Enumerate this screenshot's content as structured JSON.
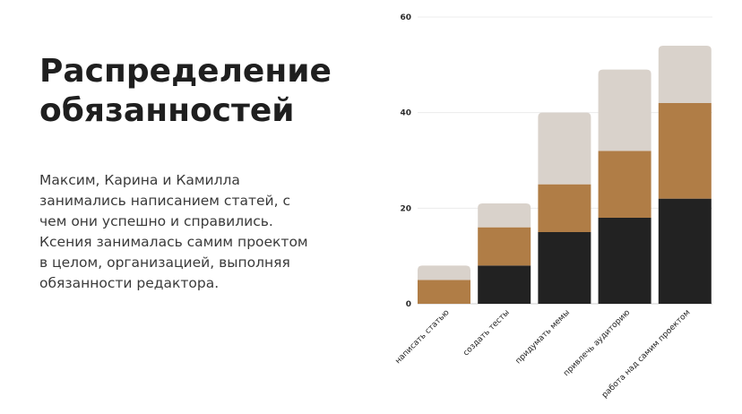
{
  "title": "Распределение\nобязанностей",
  "description": "Максим, Карина и Камилла\nзанимались написанием статей, с\nчем они успешно и справились.\nКсения занималась самим проектом\nв целом, организацией, выполняя\nобязанности редактора.",
  "colors": {
    "series": [
      "#222222",
      "#b07d46",
      "#d9d2cb"
    ],
    "grid": "#ececec",
    "text": "#1f1f1f"
  },
  "chart_data": {
    "type": "bar",
    "stacked": true,
    "categories": [
      "написать статью",
      "создать тесты",
      "придумать мемы",
      "привлечь аудиторию",
      "работа над самим проектом"
    ],
    "series": [
      {
        "values": [
          0,
          8,
          15,
          18,
          22
        ]
      },
      {
        "values": [
          5,
          8,
          10,
          14,
          20
        ]
      },
      {
        "values": [
          3,
          5,
          15,
          17,
          12
        ]
      }
    ],
    "yticks": [
      0,
      20,
      40,
      60
    ],
    "ylim": [
      0,
      60
    ],
    "grid": true,
    "legend": "none"
  }
}
